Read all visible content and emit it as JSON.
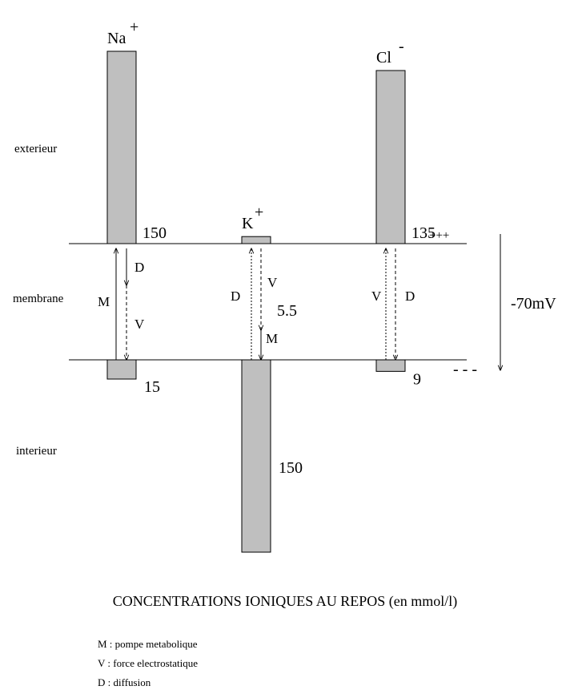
{
  "ions": [
    {
      "name": "Na",
      "charge": "+",
      "outside": 150,
      "inside": 15,
      "arrows": [
        "M",
        "D",
        "V"
      ]
    },
    {
      "name": "K",
      "charge": "+",
      "outside": 5.5,
      "inside": 150,
      "arrows": [
        "D",
        "V",
        "M"
      ]
    },
    {
      "name": "Cl",
      "charge": "-",
      "outside": 135,
      "inside": 9,
      "arrows": [
        "V",
        "D"
      ]
    }
  ],
  "regions": [
    "exterieur",
    "membrane",
    "interieur"
  ],
  "polarity": {
    "outside": "+++",
    "inside": "- - -",
    "potential": "-70mV"
  },
  "title": "CONCENTRATIONS IONIQUES AU REPOS (en mmol/l)",
  "legend": [
    "M : pompe metabolique",
    "V : force electrostatique",
    "D : diffusion"
  ]
}
